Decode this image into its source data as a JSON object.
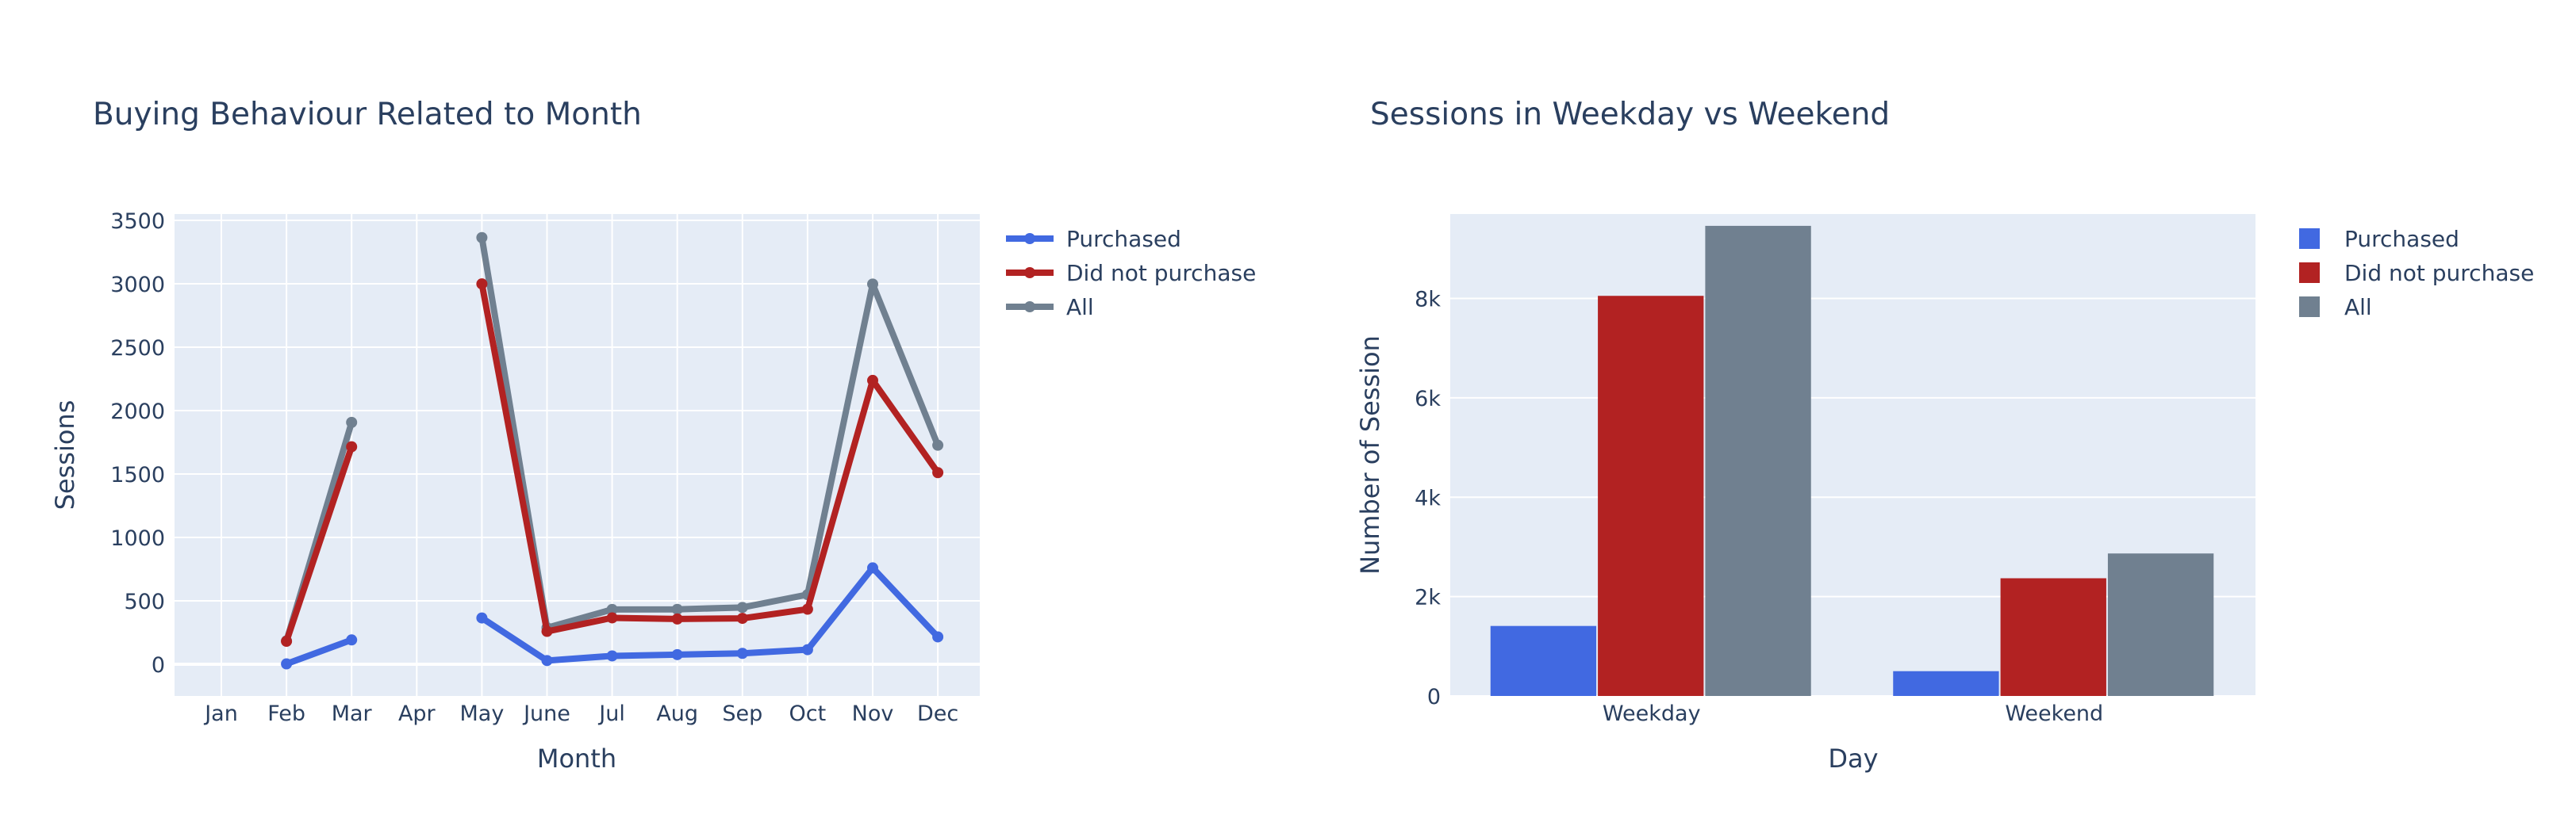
{
  "chart_data": [
    {
      "type": "line",
      "title": "Buying Behaviour Related to Month",
      "xlabel": "Month",
      "ylabel": "Sessions",
      "categories": [
        "Jan",
        "Feb",
        "Mar",
        "Apr",
        "May",
        "June",
        "Jul",
        "Aug",
        "Sep",
        "Oct",
        "Nov",
        "Dec"
      ],
      "ylim": [
        -250,
        3550
      ],
      "yticks": [
        0,
        500,
        1000,
        1500,
        2000,
        2500,
        3000,
        3500
      ],
      "ytick_labels": [
        "0",
        "500",
        "1000",
        "1500",
        "2000",
        "2500",
        "3000",
        "3500"
      ],
      "legend_position": "top-right",
      "series": [
        {
          "name": "Purchased",
          "color": "#4169e1",
          "values": [
            null,
            3,
            192,
            null,
            365,
            29,
            66,
            76,
            86,
            115,
            760,
            216
          ]
        },
        {
          "name": "Did not purchase",
          "color": "#b22222",
          "values": [
            null,
            181,
            1715,
            null,
            2999,
            259,
            366,
            357,
            362,
            434,
            2238,
            1511
          ]
        },
        {
          "name": "All",
          "color": "#708090",
          "values": [
            null,
            184,
            1907,
            null,
            3364,
            288,
            432,
            433,
            448,
            549,
            2998,
            1727
          ]
        }
      ]
    },
    {
      "type": "bar",
      "title": "Sessions in Weekday vs Weekend",
      "xlabel": "Day",
      "ylabel": "Number of Session",
      "categories": [
        "Weekday",
        "Weekend"
      ],
      "ylim": [
        0,
        9700
      ],
      "yticks": [
        0,
        2000,
        4000,
        6000,
        8000
      ],
      "ytick_labels": [
        "0",
        "2k",
        "4k",
        "6k",
        "8k"
      ],
      "legend_position": "top-right",
      "series": [
        {
          "name": "Purchased",
          "color": "#4169e1",
          "values": [
            1409,
            499
          ]
        },
        {
          "name": "Did not purchase",
          "color": "#b22222",
          "values": [
            8053,
            2369
          ]
        },
        {
          "name": "All",
          "color": "#708090",
          "values": [
            9462,
            2868
          ]
        }
      ]
    }
  ]
}
